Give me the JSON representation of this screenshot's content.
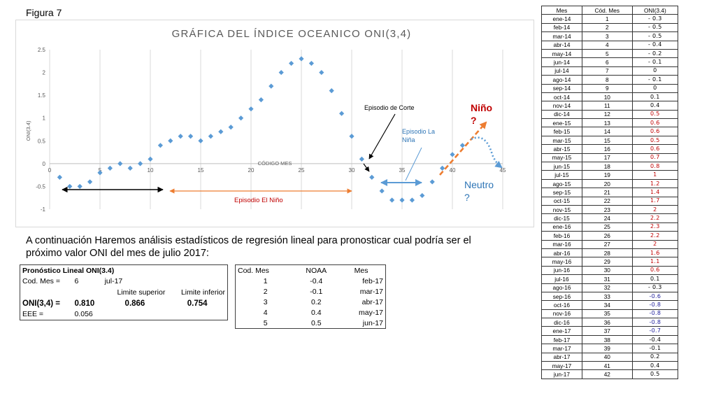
{
  "figure_label": "Figura 7",
  "intro_text": "A continuación Haremos análisis estadísticos de regresión lineal para pronosticar cual podría ser el próximo valor ONI del mes de julio 2017:",
  "colors": {
    "points": "#5b9bd5",
    "arrow_orange": "#ed7d31",
    "arrow_blue": "#5b9bd5",
    "label_red": "#c00000",
    "neutral_blue": "#2e75b6"
  },
  "chart_data": {
    "type": "scatter",
    "title": "GRÁFICA DEL ÍNDICE OCEANICO ONI(3,4)",
    "xlabel": "CÓDIGO MES",
    "ylabel": "ONI(3.4)",
    "xlim": [
      0,
      45
    ],
    "ylim": [
      -1,
      2.5
    ],
    "x_ticks": [
      "0",
      "5",
      "10",
      "15",
      "20",
      "25",
      "30",
      "35",
      "40",
      "45"
    ],
    "y_ticks": [
      "2.5",
      "2",
      "1.5",
      "1",
      "0.5",
      "0",
      "-0.5",
      "-1"
    ],
    "grid": "vertical",
    "x": [
      1,
      2,
      3,
      4,
      5,
      6,
      7,
      8,
      9,
      10,
      11,
      12,
      13,
      14,
      15,
      16,
      17,
      18,
      19,
      20,
      21,
      22,
      23,
      24,
      25,
      26,
      27,
      28,
      29,
      30,
      31,
      32,
      33,
      34,
      35,
      36,
      37,
      38,
      39,
      40,
      41
    ],
    "y": [
      -0.3,
      -0.5,
      -0.5,
      -0.4,
      -0.2,
      -0.1,
      0,
      -0.1,
      0,
      0.1,
      0.4,
      0.5,
      0.6,
      0.6,
      0.5,
      0.6,
      0.7,
      0.8,
      1,
      1.2,
      1.4,
      1.7,
      2,
      2.2,
      2.3,
      2.2,
      2,
      1.6,
      1.1,
      0.6,
      0.1,
      -0.3,
      -0.6,
      -0.8,
      -0.8,
      -0.8,
      -0.7,
      -0.4,
      -0.1,
      0.2,
      0.4
    ],
    "annotations": {
      "corte": "Episodio de Corte",
      "nina": "Episodio La Niña",
      "nino_episode": "Episodio El Niño",
      "nino_q": "Niño ?",
      "neutro_q": "Neutro ?"
    }
  },
  "forecast": {
    "title": "Pronóstico Lineal ONI(3.4)",
    "cod_label": "Cod. Mes =",
    "cod_value": "6",
    "month": "jul-17",
    "upper_label": "Limite superior",
    "lower_label": "Limite inferior",
    "oni_label": "ONI(3,4) =",
    "oni_value": "0.810",
    "upper_value": "0.866",
    "lower_value": "0.754",
    "eee_label": "EEE =",
    "eee_value": "0.056"
  },
  "noaa": {
    "headers": [
      "Cod. Mes",
      "NOAA",
      "Mes"
    ],
    "rows": [
      [
        "1",
        "-0.4",
        "feb-17"
      ],
      [
        "2",
        "-0.1",
        "mar-17"
      ],
      [
        "3",
        "0.2",
        "abr-17"
      ],
      [
        "4",
        "0.4",
        "may-17"
      ],
      [
        "5",
        "0.5",
        "jun-17"
      ]
    ]
  },
  "oni_table": {
    "headers": [
      "Mes",
      "Cód. Mes",
      "ONI(3.4)"
    ],
    "rows": [
      [
        "ene-14",
        "1",
        "- 0.3",
        "n"
      ],
      [
        "feb-14",
        "2",
        "- 0.5",
        "n"
      ],
      [
        "mar-14",
        "3",
        "- 0.5",
        "n"
      ],
      [
        "abr-14",
        "4",
        "- 0.4",
        "n"
      ],
      [
        "may-14",
        "5",
        "- 0.2",
        "n"
      ],
      [
        "jun-14",
        "6",
        "- 0.1",
        "n"
      ],
      [
        "jul-14",
        "7",
        "0",
        "n"
      ],
      [
        "ago-14",
        "8",
        "- 0.1",
        "n"
      ],
      [
        "sep-14",
        "9",
        "0",
        "n"
      ],
      [
        "oct-14",
        "10",
        "0.1",
        "n"
      ],
      [
        "nov-14",
        "11",
        "0.4",
        "n"
      ],
      [
        "dic-14",
        "12",
        "0.5",
        "pos"
      ],
      [
        "ene-15",
        "13",
        "0.6",
        "pos"
      ],
      [
        "feb-15",
        "14",
        "0.6",
        "pos"
      ],
      [
        "mar-15",
        "15",
        "0.5",
        "pos"
      ],
      [
        "abr-15",
        "16",
        "0.6",
        "pos"
      ],
      [
        "may-15",
        "17",
        "0.7",
        "pos"
      ],
      [
        "jun-15",
        "18",
        "0.8",
        "pos"
      ],
      [
        "jul-15",
        "19",
        "1",
        "pos"
      ],
      [
        "ago-15",
        "20",
        "1.2",
        "pos"
      ],
      [
        "sep-15",
        "21",
        "1.4",
        "pos"
      ],
      [
        "oct-15",
        "22",
        "1.7",
        "pos"
      ],
      [
        "nov-15",
        "23",
        "2",
        "pos"
      ],
      [
        "dic-15",
        "24",
        "2.2",
        "pos"
      ],
      [
        "ene-16",
        "25",
        "2.3",
        "pos"
      ],
      [
        "feb-16",
        "26",
        "2.2",
        "pos"
      ],
      [
        "mar-16",
        "27",
        "2",
        "pos"
      ],
      [
        "abr-16",
        "28",
        "1.6",
        "pos"
      ],
      [
        "may-16",
        "29",
        "1.1",
        "pos"
      ],
      [
        "jun-16",
        "30",
        "0.6",
        "pos"
      ],
      [
        "jul-16",
        "31",
        "0.1",
        "n"
      ],
      [
        "ago-16",
        "32",
        "- 0.3",
        "n"
      ],
      [
        "sep-16",
        "33",
        "-0.6",
        "neg"
      ],
      [
        "oct-16",
        "34",
        "-0.8",
        "neg"
      ],
      [
        "nov-16",
        "35",
        "-0.8",
        "neg"
      ],
      [
        "dic-16",
        "36",
        "-0.8",
        "neg"
      ],
      [
        "ene-17",
        "37",
        "-0.7",
        "neg"
      ],
      [
        "feb-17",
        "38",
        "-0.4",
        "n"
      ],
      [
        "mar-17",
        "39",
        "-0.1",
        "n"
      ],
      [
        "abr-17",
        "40",
        "0.2",
        "n"
      ],
      [
        "may-17",
        "41",
        "0.4",
        "n"
      ],
      [
        "jun-17",
        "42",
        "0.5",
        "n"
      ]
    ]
  }
}
